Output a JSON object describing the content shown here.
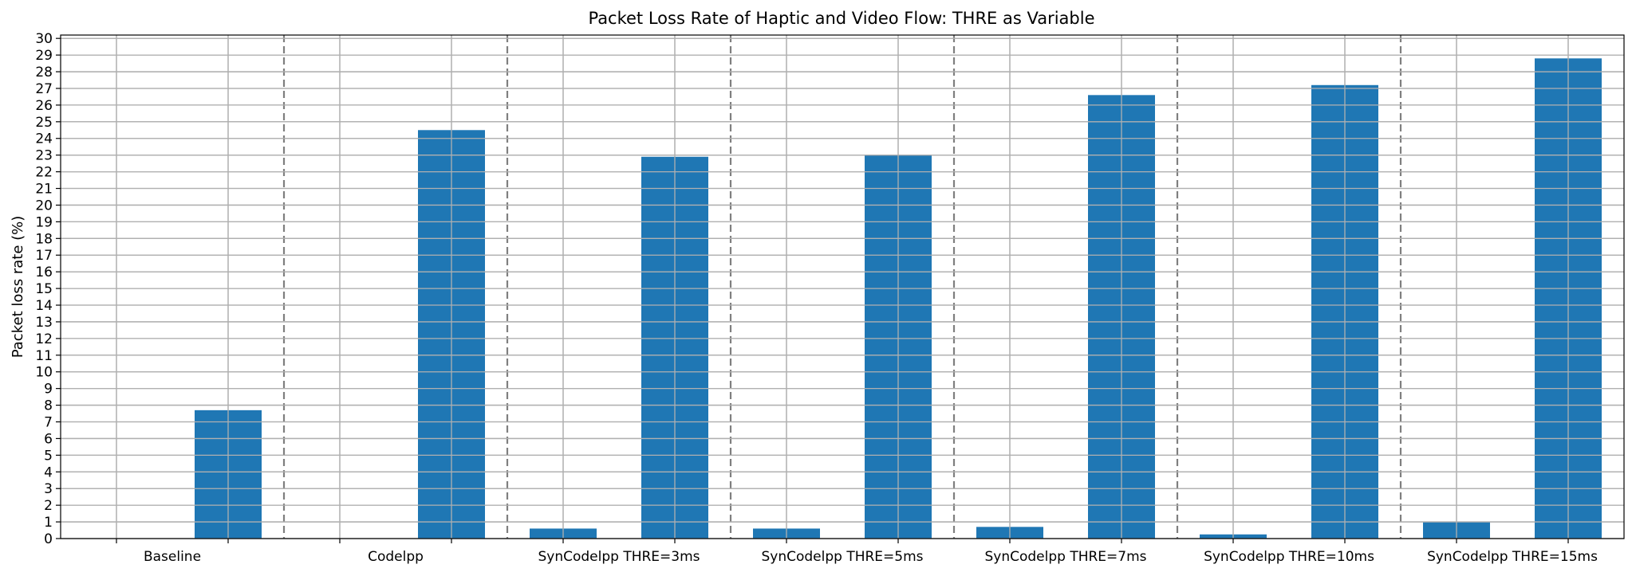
{
  "chart_data": {
    "type": "bar",
    "title": "Packet Loss Rate of Haptic and Video Flow: THRE as Variable",
    "xlabel": "",
    "ylabel": "Packet loss rate (%)",
    "ylim": [
      0,
      30.2
    ],
    "yticks": [
      0,
      1,
      2,
      3,
      4,
      5,
      6,
      7,
      8,
      9,
      10,
      11,
      12,
      13,
      14,
      15,
      16,
      17,
      18,
      19,
      20,
      21,
      22,
      23,
      24,
      25,
      26,
      27,
      28,
      29,
      30
    ],
    "grid": true,
    "group_separators": "dashed",
    "categories": [
      "Baseline",
      "Codelpp",
      "SynCodelpp THRE=3ms",
      "SynCodelpp THRE=5ms",
      "SynCodelpp THRE=7ms",
      "SynCodelpp THRE=10ms",
      "SynCodelpp THRE=15ms"
    ],
    "series": [
      {
        "values": [
          0,
          0,
          0.6,
          0.6,
          0.7,
          0.25,
          1.0
        ],
        "color": "#1f77b4"
      },
      {
        "values": [
          7.7,
          24.5,
          22.9,
          23.0,
          26.6,
          27.2,
          28.8
        ],
        "color": "#1f77b4"
      }
    ],
    "colors": {
      "bar": "#1f77b4",
      "grid": "#b0b0b0",
      "separator": "#7f7f7f",
      "axis": "#000000"
    }
  }
}
